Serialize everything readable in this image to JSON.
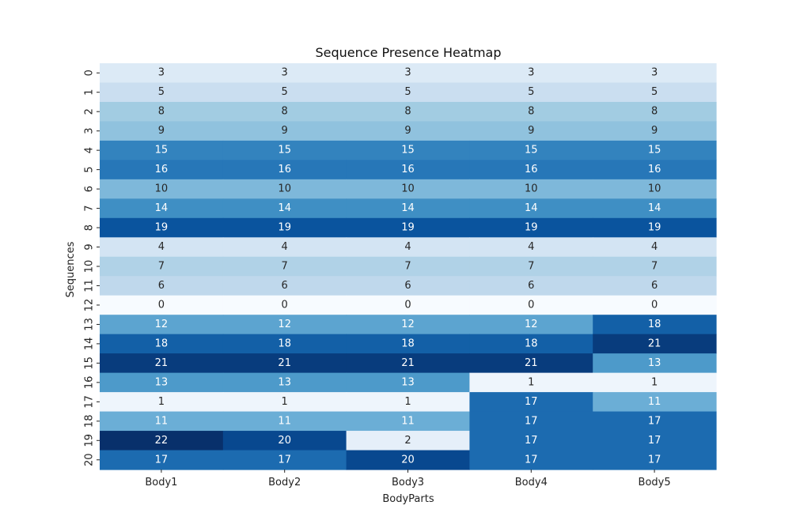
{
  "chart_data": {
    "type": "heatmap",
    "title": "Sequence Presence Heatmap",
    "xlabel": "BodyParts",
    "ylabel": "Sequences",
    "x_categories": [
      "Body1",
      "Body2",
      "Body3",
      "Body4",
      "Body5"
    ],
    "y_categories": [
      "0",
      "1",
      "2",
      "3",
      "4",
      "5",
      "6",
      "7",
      "8",
      "9",
      "10",
      "11",
      "12",
      "13",
      "14",
      "15",
      "16",
      "17",
      "18",
      "19",
      "20"
    ],
    "values": [
      [
        3,
        3,
        3,
        3,
        3
      ],
      [
        5,
        5,
        5,
        5,
        5
      ],
      [
        8,
        8,
        8,
        8,
        8
      ],
      [
        9,
        9,
        9,
        9,
        9
      ],
      [
        15,
        15,
        15,
        15,
        15
      ],
      [
        16,
        16,
        16,
        16,
        16
      ],
      [
        10,
        10,
        10,
        10,
        10
      ],
      [
        14,
        14,
        14,
        14,
        14
      ],
      [
        19,
        19,
        19,
        19,
        19
      ],
      [
        4,
        4,
        4,
        4,
        4
      ],
      [
        7,
        7,
        7,
        7,
        7
      ],
      [
        6,
        6,
        6,
        6,
        6
      ],
      [
        0,
        0,
        0,
        0,
        0
      ],
      [
        12,
        12,
        12,
        12,
        18
      ],
      [
        18,
        18,
        18,
        18,
        21
      ],
      [
        21,
        21,
        21,
        21,
        13
      ],
      [
        13,
        13,
        13,
        1,
        1
      ],
      [
        1,
        1,
        1,
        17,
        11
      ],
      [
        11,
        11,
        11,
        17,
        17
      ],
      [
        22,
        20,
        2,
        17,
        17
      ],
      [
        17,
        17,
        20,
        17,
        17
      ]
    ],
    "value_range": [
      0,
      22
    ],
    "colormap": "Blues",
    "colorbar": false,
    "annotated": true
  }
}
